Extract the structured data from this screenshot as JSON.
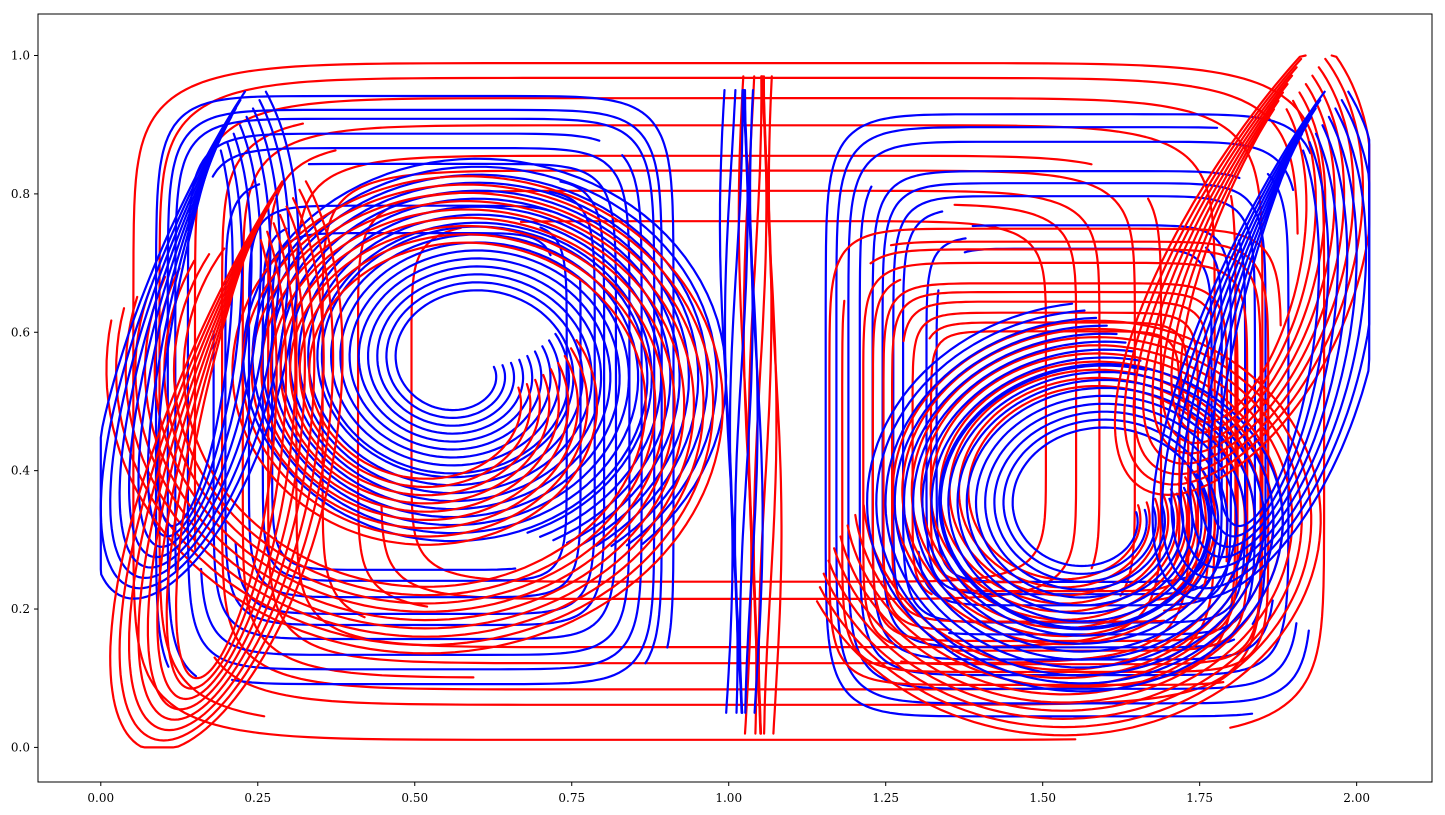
{
  "chart_data": {
    "type": "line",
    "title": "",
    "xlabel": "",
    "ylabel": "",
    "xlim": [
      -0.1,
      2.12
    ],
    "ylim": [
      -0.05,
      1.06
    ],
    "grid": false,
    "legend": "none",
    "x_ticks": [
      0.0,
      0.25,
      0.5,
      0.75,
      1.0,
      1.25,
      1.5,
      1.75,
      2.0
    ],
    "x_tick_labels": [
      "0.00",
      "0.25",
      "0.50",
      "0.75",
      "1.00",
      "1.25",
      "1.50",
      "1.75",
      "2.00"
    ],
    "y_ticks": [
      0.0,
      0.2,
      0.4,
      0.6,
      0.8,
      1.0
    ],
    "y_tick_labels": [
      "0.0",
      "0.2",
      "0.4",
      "0.6",
      "0.8",
      "1.0"
    ],
    "colors": {
      "red": "#ff0000",
      "blue": "#0000ff"
    },
    "series": [
      {
        "color": "red",
        "style": "box",
        "params": {
          "cx": 1.0,
          "cy": 0.5,
          "hw": 0.95,
          "hh": 0.49
        }
      },
      {
        "color": "blue",
        "style": "box",
        "params": {
          "cx": 0.5,
          "cy": 0.5,
          "hw": 0.42,
          "hh": 0.45
        }
      },
      {
        "color": "blue",
        "style": "box",
        "params": {
          "cx": 1.55,
          "cy": 0.48,
          "hw": 0.4,
          "hh": 0.44
        }
      },
      {
        "color": "red",
        "style": "box",
        "params": {
          "cx": 1.52,
          "cy": 0.42,
          "hw": 0.36,
          "hh": 0.33
        }
      },
      {
        "color": "blue",
        "style": "spiral",
        "params": {
          "cx": 0.58,
          "cy": 0.55,
          "r0": 0.04,
          "r1": 0.28,
          "turns": 2.2
        }
      },
      {
        "color": "red",
        "style": "spiral",
        "params": {
          "cx": 0.55,
          "cy": 0.52,
          "r0": 0.1,
          "r1": 0.38,
          "turns": 1.6
        }
      },
      {
        "color": "red",
        "style": "spiral",
        "params": {
          "cx": 1.56,
          "cy": 0.35,
          "r0": 0.08,
          "r1": 0.3,
          "turns": 1.5
        }
      },
      {
        "color": "blue",
        "style": "spiral",
        "params": {
          "cx": 1.58,
          "cy": 0.34,
          "r0": 0.06,
          "r1": 0.24,
          "turns": 1.8
        }
      },
      {
        "color": "blue",
        "style": "vortex",
        "params": {
          "cx": 0.15,
          "cy": 0.62,
          "rx": 0.06,
          "ry": 0.3
        }
      },
      {
        "color": "red",
        "style": "vortex",
        "params": {
          "cx": 0.2,
          "cy": 0.45,
          "rx": 0.08,
          "ry": 0.35
        }
      },
      {
        "color": "red",
        "style": "vortex",
        "params": {
          "cx": 1.82,
          "cy": 0.72,
          "rx": 0.1,
          "ry": 0.25
        }
      },
      {
        "color": "blue",
        "style": "vortex",
        "params": {
          "cx": 1.86,
          "cy": 0.62,
          "rx": 0.08,
          "ry": 0.3
        }
      },
      {
        "color": "red",
        "style": "vband",
        "params": {
          "x": 1.05,
          "y0": 0.02,
          "y1": 0.97
        }
      },
      {
        "color": "blue",
        "style": "vband",
        "params": {
          "x": 1.02,
          "y0": 0.05,
          "y1": 0.95
        }
      }
    ]
  }
}
